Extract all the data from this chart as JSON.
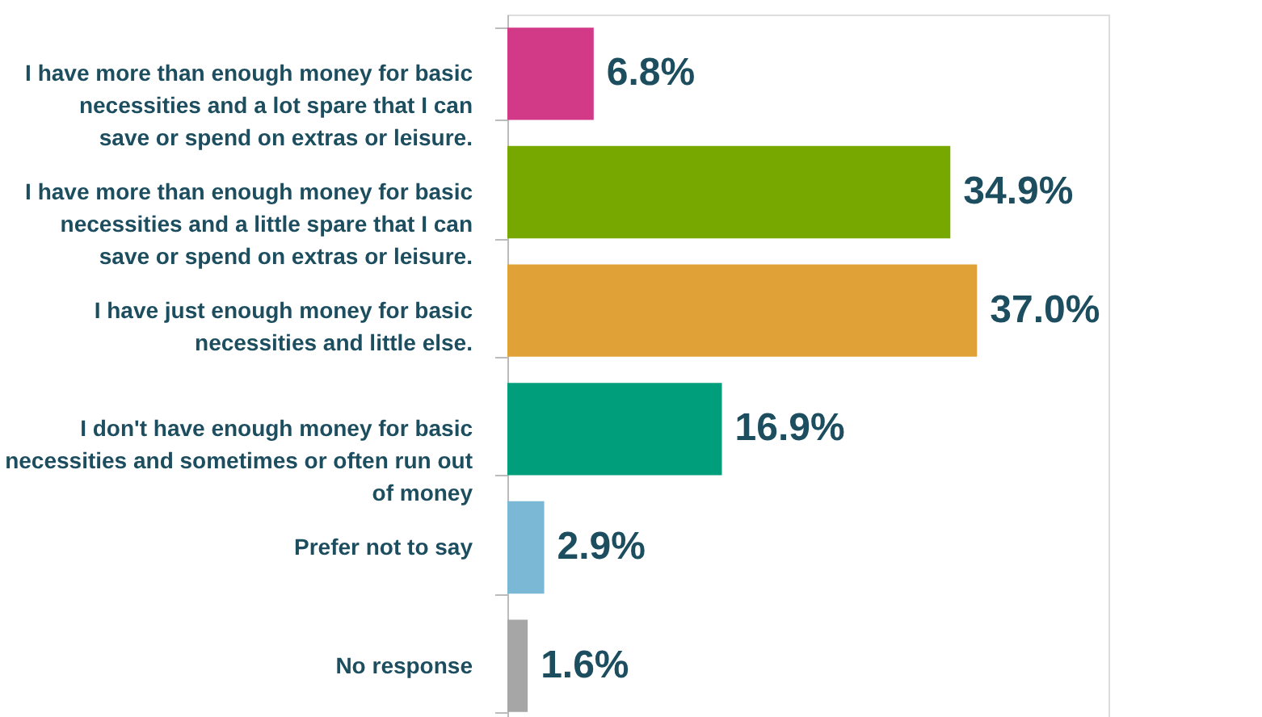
{
  "chart_data": {
    "type": "bar",
    "orientation": "horizontal",
    "categories": [
      "I have more than enough money for basic necessities and a lot spare that I can save or spend on extras or leisure.",
      "I have more than enough money for basic necessities and a little spare that I can save or spend on extras or leisure.",
      "I have just enough money for basic necessities and little else.",
      "I don't have enough money for basic necessities and sometimes or often run out of money",
      "Prefer not to say",
      "No response"
    ],
    "values": [
      6.8,
      34.9,
      37.0,
      16.9,
      2.9,
      1.6
    ],
    "value_labels": [
      "6.8%",
      "34.9%",
      "37.0%",
      "16.9%",
      "2.9%",
      "1.6%"
    ],
    "colors": [
      "#d23a87",
      "#77a800",
      "#e0a236",
      "#009e7a",
      "#7ab8d6",
      "#a6a6a6"
    ],
    "tick_labels": "y"
  }
}
